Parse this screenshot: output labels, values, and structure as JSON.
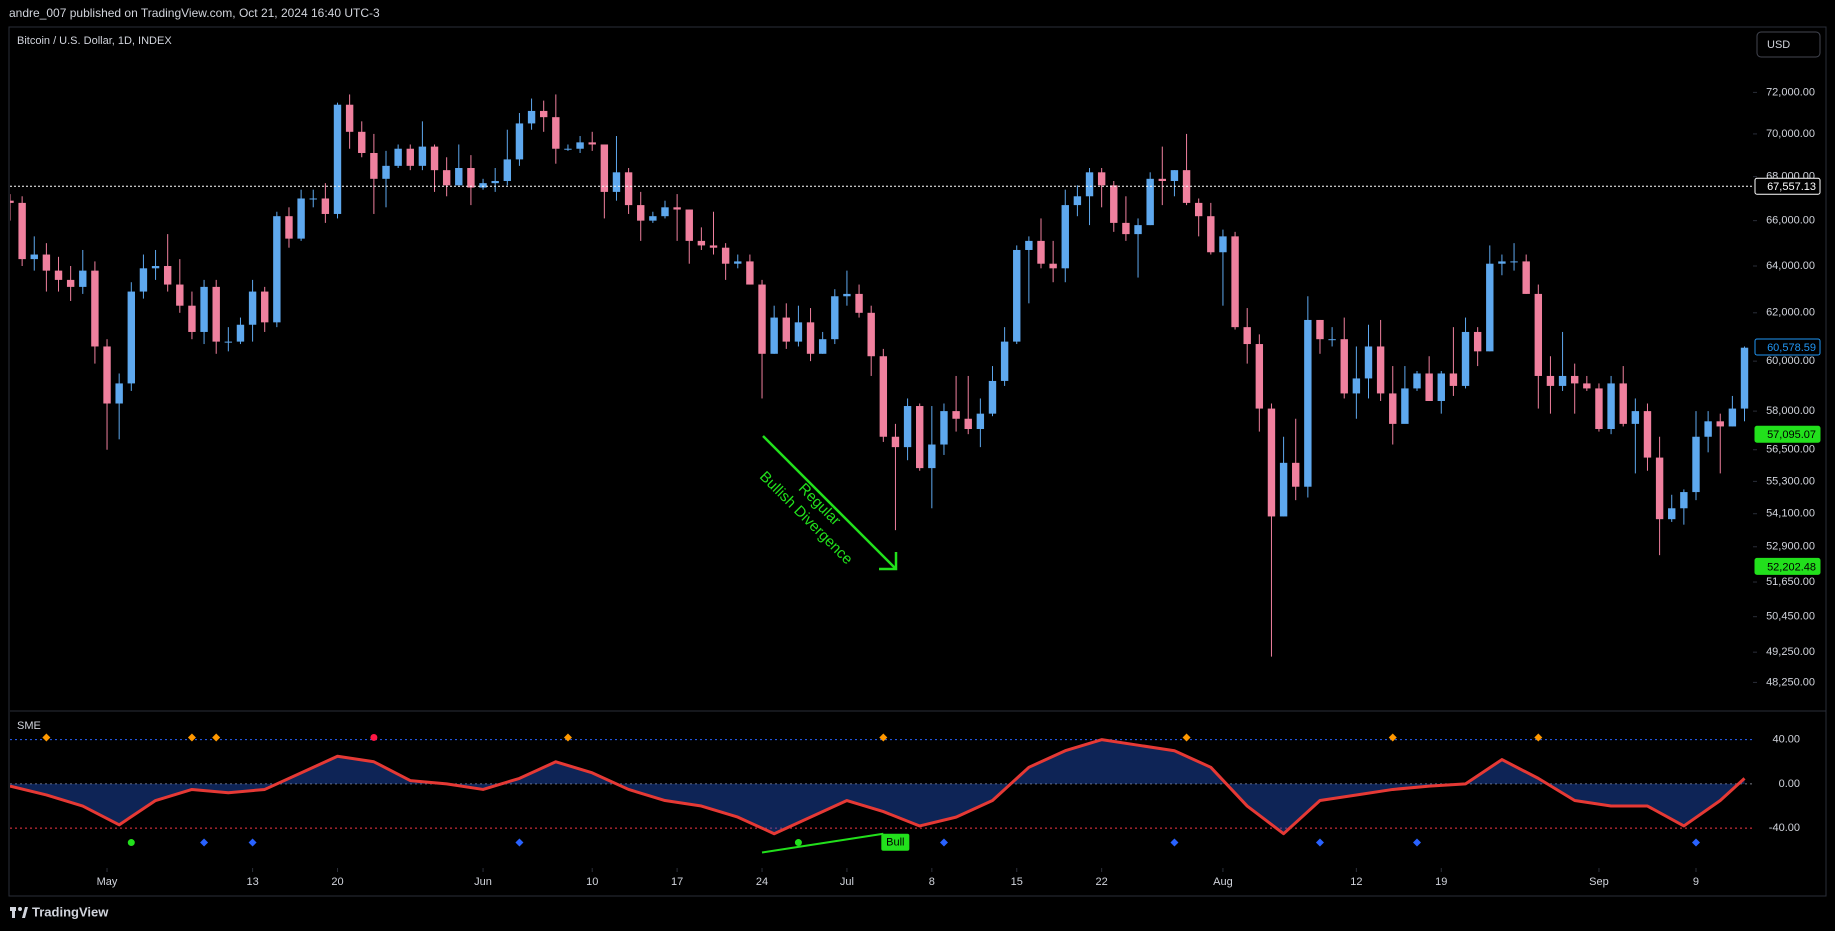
{
  "header": {
    "publisher": "andre_007 published on TradingView.com, Oct 21, 2024 16:40 UTC-3",
    "currency": "USD",
    "footer": "TradingView"
  },
  "chart_data": [
    {
      "type": "candlestick",
      "title": "Bitcoin / U.S. Dollar, 1D, INDEX",
      "log": true,
      "grid": false,
      "xlim": [
        0,
        143.7
      ],
      "xticks": [
        {
          "value": 8,
          "label": "May"
        },
        {
          "value": 20,
          "label": "13"
        },
        {
          "value": 27,
          "label": "20"
        },
        {
          "value": 39,
          "label": "Jun"
        },
        {
          "value": 48,
          "label": "10"
        },
        {
          "value": 55,
          "label": "17"
        },
        {
          "value": 62,
          "label": "24"
        },
        {
          "value": 69,
          "label": "Jul"
        },
        {
          "value": 76,
          "label": "8"
        },
        {
          "value": 83,
          "label": "15"
        },
        {
          "value": 90,
          "label": "22"
        },
        {
          "value": 100,
          "label": "Aug"
        },
        {
          "value": 111,
          "label": "12"
        },
        {
          "value": 118,
          "label": "19"
        },
        {
          "value": 131,
          "label": "Sep"
        },
        {
          "value": 139,
          "label": "9"
        }
      ],
      "ylim": [
        47355,
        75215
      ],
      "yticks": [
        {
          "value": 72000,
          "label": "72,000.00"
        },
        {
          "value": 70000,
          "label": "70,000.00"
        },
        {
          "value": 68000,
          "label": "68,000.00"
        },
        {
          "value": 66000,
          "label": "66,000.00"
        },
        {
          "value": 64000,
          "label": "64,000.00"
        },
        {
          "value": 62000,
          "label": "62,000.00"
        },
        {
          "value": 60000,
          "label": "60,000.00"
        },
        {
          "value": 58000,
          "label": "58,000.00"
        },
        {
          "value": 56500,
          "label": "56,500.00"
        },
        {
          "value": 55300,
          "label": "55,300.00"
        },
        {
          "value": 54100,
          "label": "54,100.00"
        },
        {
          "value": 52900,
          "label": "52,900.00"
        },
        {
          "value": 51650,
          "label": "51,650.00"
        },
        {
          "value": 50450,
          "label": "50,450.00"
        },
        {
          "value": 49250,
          "label": "49,250.00"
        },
        {
          "value": 48250,
          "label": "48,250.00"
        }
      ],
      "up_color": "#5ea8ee",
      "down_color": "#f0809e",
      "open": [
        66900,
        66800,
        64300,
        64500,
        63800,
        63400,
        63100,
        63800,
        60600,
        58300,
        59100,
        62900,
        63900,
        64000,
        63200,
        62300,
        61200,
        63100,
        60800,
        60800,
        61500,
        62900,
        61600,
        66200,
        65200,
        67000,
        67000,
        66300,
        71400,
        70100,
        69100,
        67900,
        68500,
        69300,
        68500,
        69400,
        68300,
        67600,
        68400,
        67500,
        67700,
        67800,
        68800,
        70500,
        71100,
        70800,
        69300,
        69300,
        69600,
        69500,
        67300,
        68200,
        66700,
        66000,
        66200,
        66600,
        66500,
        65100,
        64900,
        64800,
        64100,
        64200,
        63200,
        60300,
        61800,
        60800,
        61600,
        60300,
        60900,
        62700,
        62800,
        62000,
        60200,
        57000,
        56600,
        58200,
        55800,
        56700,
        58000,
        57700,
        57300,
        57900,
        59200,
        60800,
        64700,
        65100,
        64100,
        63900,
        66700,
        67100,
        68200,
        67600,
        65900,
        65400,
        65800,
        67900,
        67800,
        68300,
        66800,
        66200,
        64600,
        65300,
        61400,
        60700,
        58100,
        54000,
        56000,
        55100,
        61700,
        60900,
        60900,
        58700,
        59300,
        60600,
        58700,
        57500,
        58900,
        59500,
        58400,
        59500,
        59000,
        61200,
        60400,
        64100,
        64200,
        64200,
        62800,
        59400,
        59000,
        59400,
        59100,
        58900,
        57300,
        59100,
        57500,
        58000,
        56200,
        53900,
        54300,
        54900,
        57000,
        57600,
        57400,
        58100
      ],
      "high": [
        67200,
        67100,
        65300,
        65000,
        64400,
        64000,
        64700,
        64200,
        60900,
        59500,
        63300,
        64500,
        64700,
        65400,
        64300,
        62900,
        63400,
        63400,
        61400,
        61800,
        63400,
        63100,
        66400,
        66600,
        67400,
        67400,
        67700,
        71500,
        71900,
        70600,
        70000,
        69200,
        69500,
        69500,
        70600,
        69500,
        68900,
        69500,
        69000,
        67900,
        68400,
        70200,
        71000,
        71700,
        71600,
        71900,
        69500,
        69900,
        70100,
        69500,
        69900,
        68400,
        67300,
        66400,
        66900,
        67200,
        66500,
        65700,
        66400,
        65000,
        64500,
        64500,
        63400,
        62300,
        62400,
        62300,
        62200,
        61200,
        63000,
        63800,
        63200,
        62300,
        60500,
        57500,
        58500,
        58300,
        58200,
        58300,
        59400,
        59400,
        58500,
        59800,
        61400,
        64900,
        65300,
        66100,
        65100,
        67400,
        67600,
        68400,
        68400,
        67800,
        67100,
        66100,
        68200,
        69400,
        68300,
        70000,
        67000,
        66800,
        65600,
        65500,
        62200,
        61100,
        58300,
        57000,
        57700,
        62700,
        61700,
        61400,
        61800,
        60600,
        61500,
        61700,
        59800,
        59800,
        59600,
        60200,
        59600,
        61400,
        61800,
        61400,
        64900,
        64500,
        65000,
        64500,
        63200,
        60200,
        61200,
        59900,
        59400,
        59100,
        59400,
        59800,
        58500,
        58300,
        57000,
        54800,
        55000,
        58000,
        58000,
        57900,
        58600,
        60600
      ],
      "low": [
        66000,
        64000,
        63800,
        62900,
        62900,
        62500,
        62800,
        59900,
        56500,
        56900,
        58800,
        62600,
        63400,
        62900,
        62000,
        60900,
        60700,
        60300,
        60400,
        60700,
        60800,
        61200,
        61400,
        64800,
        65100,
        66600,
        65900,
        66100,
        69300,
        68900,
        66300,
        66600,
        68400,
        68300,
        68300,
        67300,
        67100,
        67600,
        66700,
        67400,
        67300,
        67600,
        68500,
        70200,
        70100,
        68600,
        69200,
        69100,
        69200,
        66100,
        66900,
        66300,
        65100,
        65900,
        66100,
        65100,
        64100,
        64700,
        64500,
        63400,
        63900,
        63200,
        58500,
        60300,
        60500,
        60600,
        60000,
        60300,
        60700,
        62300,
        61800,
        59400,
        56800,
        53500,
        56100,
        55700,
        54300,
        56300,
        57200,
        57100,
        56600,
        57800,
        59000,
        60700,
        62400,
        63900,
        63300,
        63300,
        66200,
        65800,
        66600,
        65500,
        65100,
        63500,
        65800,
        66700,
        67100,
        66700,
        65300,
        64500,
        62300,
        61300,
        59900,
        57200,
        49100,
        54000,
        54600,
        54700,
        60300,
        60600,
        58500,
        57700,
        58500,
        58400,
        56700,
        57700,
        58800,
        58400,
        57900,
        58600,
        58900,
        59800,
        60400,
        63600,
        63800,
        62800,
        58100,
        57900,
        58800,
        57900,
        58800,
        57200,
        57100,
        57400,
        55600,
        55700,
        52600,
        53800,
        53700,
        54600,
        56400,
        55600,
        57400,
        57600
      ],
      "close": [
        66800,
        64300,
        64500,
        63800,
        63400,
        63100,
        63800,
        60600,
        58300,
        59100,
        62900,
        63900,
        64000,
        63200,
        62300,
        61200,
        63100,
        60800,
        60800,
        61500,
        62900,
        61600,
        66200,
        65200,
        67000,
        67000,
        66300,
        71400,
        70100,
        69100,
        67900,
        68500,
        69300,
        68500,
        69400,
        68300,
        67600,
        68400,
        67500,
        67700,
        67800,
        68800,
        70500,
        71100,
        70800,
        69300,
        69300,
        69600,
        69500,
        67300,
        68200,
        66700,
        66000,
        66200,
        66600,
        66500,
        65100,
        64900,
        64800,
        64100,
        64200,
        63200,
        60300,
        61800,
        60800,
        61600,
        60300,
        60900,
        62700,
        62800,
        62000,
        60200,
        57000,
        56600,
        58200,
        55800,
        56700,
        58000,
        57700,
        57300,
        57900,
        59200,
        60800,
        64700,
        65100,
        64100,
        63900,
        66700,
        67100,
        68200,
        67600,
        65900,
        65400,
        65800,
        67900,
        67800,
        68300,
        66800,
        66200,
        64600,
        65300,
        61400,
        60700,
        58100,
        54000,
        56000,
        55100,
        61700,
        60900,
        60900,
        58700,
        59300,
        60600,
        58700,
        57500,
        58900,
        59500,
        58400,
        59500,
        59000,
        61200,
        60400,
        64100,
        64200,
        64200,
        62800,
        59400,
        59000,
        59400,
        59100,
        58900,
        57300,
        59100,
        57500,
        58000,
        56200,
        53900,
        54300,
        54900,
        57000,
        57600,
        57400,
        58100,
        60550
      ],
      "price_lines": [
        {
          "value": 67557.13,
          "label": "67,557.13",
          "color": "#ffffff"
        },
        {
          "value": 60578.59,
          "label": "60,578.59",
          "color": "#2196f3"
        },
        {
          "value": 57095.07,
          "label": "57,095.07",
          "color": "#22e01c"
        },
        {
          "value": 52202.48,
          "label": "52,202.48",
          "color": "#22e01c"
        }
      ],
      "annotation": [
        "Regular",
        "Bullish Divergence"
      ],
      "annotation_color": "#22e01c"
    },
    {
      "type": "oscillator",
      "title": "SME",
      "xlim": [
        0,
        143.7
      ],
      "ylim": [
        -76,
        65
      ],
      "yticks": [
        {
          "value": 40,
          "label": "40.00"
        },
        {
          "value": 0,
          "label": "0.00"
        },
        {
          "value": -40,
          "label": "-40.00"
        }
      ],
      "x": [
        0,
        3,
        6,
        9,
        12,
        15,
        18,
        21,
        24,
        27,
        30,
        33,
        36,
        39,
        42,
        45,
        48,
        51,
        54,
        57,
        60,
        63,
        66,
        69,
        72,
        75,
        78,
        81,
        84,
        87,
        90,
        93,
        96,
        99,
        102,
        105,
        108,
        111,
        114,
        117,
        120,
        123,
        126,
        129,
        132,
        135,
        138,
        141,
        143
      ],
      "values": [
        -2,
        -10,
        -20,
        -37,
        -15,
        -5,
        -8,
        -5,
        10,
        25,
        20,
        3,
        0,
        -5,
        5,
        20,
        10,
        -5,
        -15,
        -20,
        -30,
        -45,
        -30,
        -15,
        -25,
        -38,
        -30,
        -15,
        15,
        30,
        40,
        35,
        30,
        15,
        -20,
        -45,
        -15,
        -10,
        -5,
        -2,
        0,
        22,
        5,
        -15,
        -20,
        -20,
        -38,
        -15,
        5
      ],
      "color": "#e53935",
      "fill_color": "#1e4fbf",
      "markers": [
        {
          "x": 3,
          "value": 42,
          "color": "#ff9800"
        },
        {
          "x": 15,
          "value": 42,
          "color": "#ff9800"
        },
        {
          "x": 17,
          "value": 42,
          "color": "#ff9800"
        },
        {
          "x": 30,
          "value": 42,
          "color": "#ff1744"
        },
        {
          "x": 46,
          "value": 42,
          "color": "#ff9800"
        },
        {
          "x": 72,
          "value": 42,
          "color": "#ff9800"
        },
        {
          "x": 97,
          "value": 42,
          "color": "#ff9800"
        },
        {
          "x": 114,
          "value": 42,
          "color": "#ff9800"
        },
        {
          "x": 126,
          "value": 42,
          "color": "#ff9800"
        },
        {
          "x": 10,
          "value": -53,
          "color": "#22e01c"
        },
        {
          "x": 16,
          "value": -53,
          "color": "#2962ff"
        },
        {
          "x": 20,
          "value": -53,
          "color": "#2962ff"
        },
        {
          "x": 42,
          "value": -53,
          "color": "#2962ff"
        },
        {
          "x": 65,
          "value": -53,
          "color": "#22e01c"
        },
        {
          "x": 77,
          "value": -53,
          "color": "#2962ff"
        },
        {
          "x": 96,
          "value": -53,
          "color": "#2962ff"
        },
        {
          "x": 108,
          "value": -53,
          "color": "#2962ff"
        },
        {
          "x": 116,
          "value": -53,
          "color": "#2962ff"
        },
        {
          "x": 139,
          "value": -53,
          "color": "#2962ff"
        }
      ],
      "divergence": {
        "x": [
          62,
          72
        ],
        "values": [
          -62,
          -45
        ],
        "label": "Bull",
        "color": "#22e01c"
      }
    }
  ]
}
